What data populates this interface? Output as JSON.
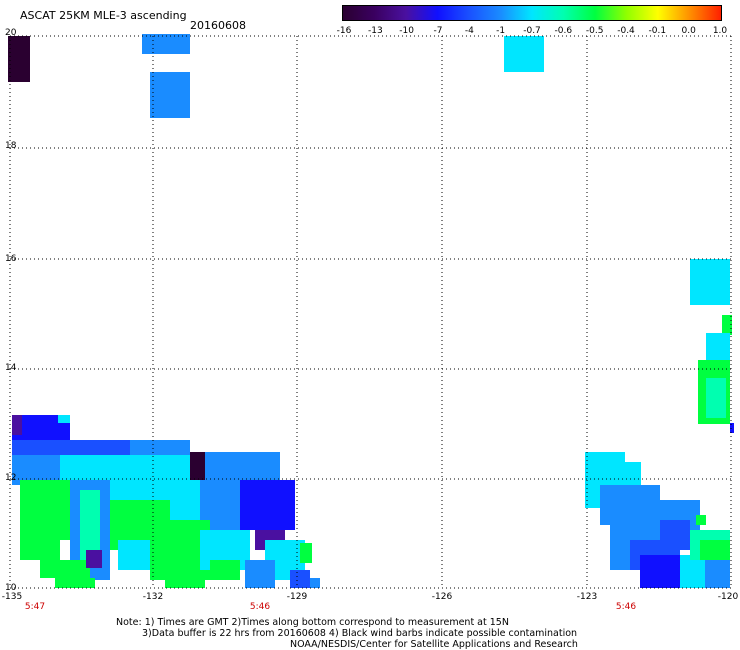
{
  "header": {
    "title": "ASCAT 25KM MLE-3 ascending",
    "date": "20160608"
  },
  "colorbar": {
    "labels": [
      "-16",
      "-13",
      "-10",
      "-7",
      "-4",
      "-1",
      "-0.7",
      "-0.6",
      "-0.5",
      "-0.4",
      "-0.1",
      "0.0",
      "1.0"
    ],
    "colors": [
      "#2a0030",
      "#3a0060",
      "#4a10a0",
      "#1010ff",
      "#1a50ff",
      "#1a8cff",
      "#00e6ff",
      "#00ffb0",
      "#00ff40",
      "#90ff00",
      "#ffff00",
      "#ff9000",
      "#ff2000"
    ]
  },
  "axes": {
    "y_ticks": [
      "20",
      "18",
      "16",
      "14",
      "12",
      "10"
    ],
    "x_ticks": [
      "-135",
      "-132",
      "-129",
      "-126",
      "-123",
      "-120"
    ],
    "pass_times": [
      "5:47",
      "5:46",
      "5:46"
    ]
  },
  "notes": [
    "Note: 1) Times are GMT 2)Times along bottom correspond to measurement at 15N",
    "3)Data buffer is 22 hrs from 20160608 4) Black wind barbs indicate possible contamination",
    "NOAA/NESDIS/Center for Satellite Applications and Research"
  ]
}
